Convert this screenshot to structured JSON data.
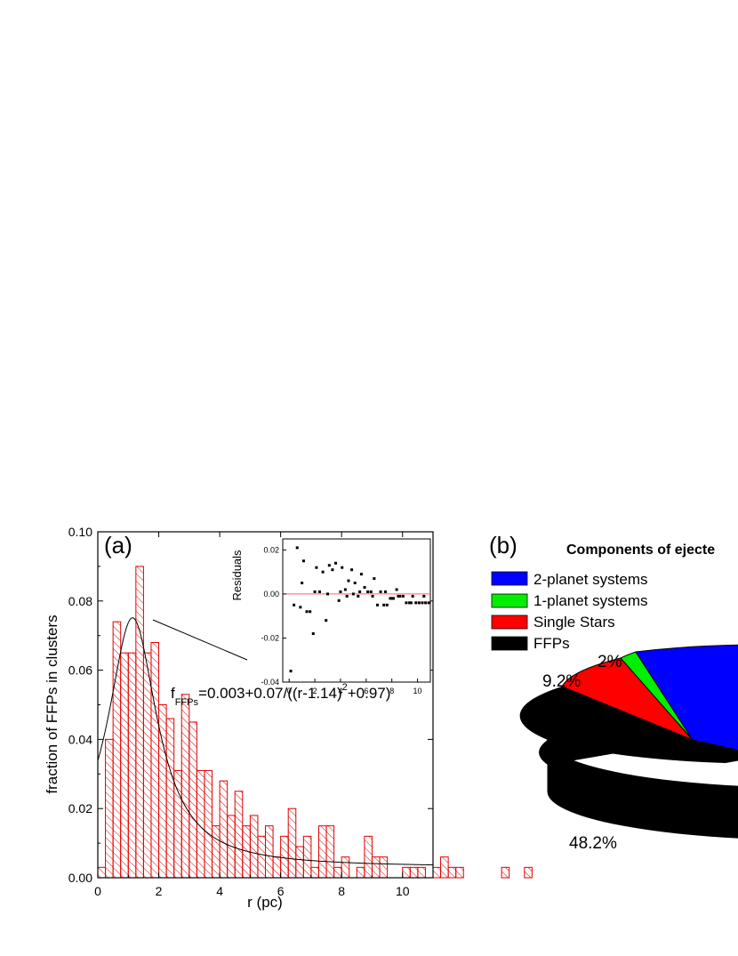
{
  "chart_data": [
    {
      "type": "bar",
      "panel_label": "(a)",
      "xlabel": "r (pc)",
      "ylabel": "fraction of FFPs in clusters",
      "xlim": [
        0,
        11
      ],
      "ylim": [
        0,
        0.1
      ],
      "x_ticks": [
        "0",
        "2",
        "4",
        "6",
        "8",
        "10"
      ],
      "y_ticks": [
        "0.00",
        "0.02",
        "0.04",
        "0.06",
        "0.08",
        "0.10"
      ],
      "bin_width": 0.25,
      "bin_start": 0,
      "values": [
        0.003,
        0.04,
        0.074,
        0.065,
        0.065,
        0.09,
        0.065,
        0.068,
        0.05,
        0.046,
        0.031,
        0.053,
        0.045,
        0.031,
        0.031,
        0.015,
        0.028,
        0.018,
        0.025,
        0.015,
        0.018,
        0.012,
        0.015,
        0.006,
        0.012,
        0.02,
        0.009,
        0.012,
        0.003,
        0.015,
        0.015,
        0.003,
        0.006,
        0,
        0.003,
        0.012,
        0.006,
        0.006,
        0,
        0,
        0.003,
        0.003,
        0.003,
        0,
        0.003,
        0.006,
        0.003,
        0.003,
        0,
        0,
        0,
        0,
        0,
        0.003,
        0,
        0,
        0.003,
        0
      ],
      "fit_equation": {
        "lead": "f",
        "sub": "FFPs",
        "mid": "=0.003+0.07/((r-1.14)",
        "sup": "2",
        "tail": "+0.97)"
      },
      "fit_params": {
        "a": 0.003,
        "b": 0.07,
        "c": 1.14,
        "d": 0.97
      },
      "bar_color": "#e00000"
    },
    {
      "type": "scatter",
      "role": "inset",
      "ylabel": "Residuals",
      "xlim": [
        -0.5,
        11
      ],
      "ylim": [
        -0.04,
        0.025
      ],
      "x_ticks": [
        "0",
        "2",
        "4",
        "6",
        "8",
        "10"
      ],
      "y_ticks": [
        "0.02",
        "0.00",
        "-0.02",
        "-0.04"
      ],
      "points": [
        [
          0.125,
          -0.035
        ],
        [
          0.375,
          -0.005
        ],
        [
          0.625,
          0.021
        ],
        [
          0.875,
          -0.006
        ],
        [
          1.125,
          0.015
        ],
        [
          1.375,
          -0.008
        ],
        [
          1.625,
          -0.008
        ],
        [
          1.875,
          -0.018
        ],
        [
          2.125,
          0.012
        ],
        [
          2.375,
          0.001
        ],
        [
          2.625,
          0.01
        ],
        [
          2.875,
          -0.012
        ],
        [
          3.125,
          0.013
        ],
        [
          3.375,
          0.011
        ],
        [
          3.625,
          0.014
        ],
        [
          3.875,
          -0.003
        ],
        [
          4.125,
          0.012
        ],
        [
          4.375,
          0.002
        ],
        [
          4.625,
          0.006
        ],
        [
          4.875,
          0.011
        ],
        [
          5.125,
          0.005
        ],
        [
          5.375,
          -0.001
        ],
        [
          5.625,
          0.009
        ],
        [
          5.875,
          0.003
        ],
        [
          6.125,
          0.001
        ],
        [
          6.375,
          0.001
        ],
        [
          6.625,
          0.007
        ],
        [
          6.875,
          -0.005
        ],
        [
          7.125,
          0.001
        ],
        [
          7.375,
          -0.005
        ],
        [
          7.625,
          -0.005
        ],
        [
          7.875,
          -0.002
        ],
        [
          8.125,
          -0.002
        ],
        [
          8.375,
          0.002
        ],
        [
          8.625,
          -0.001
        ],
        [
          8.875,
          -0.001
        ],
        [
          9.125,
          -0.004
        ],
        [
          9.375,
          -0.004
        ],
        [
          9.625,
          -0.001
        ],
        [
          9.875,
          -0.004
        ],
        [
          10.125,
          -0.004
        ],
        [
          10.375,
          -0.004
        ],
        [
          10.625,
          -0.004
        ],
        [
          10.875,
          -0.004
        ],
        [
          1.0,
          0.005
        ],
        [
          2.0,
          0.001
        ],
        [
          3.0,
          0.0
        ],
        [
          4.0,
          0.001
        ],
        [
          4.5,
          -0.001
        ],
        [
          5.0,
          0.0
        ],
        [
          5.5,
          0.001
        ],
        [
          6.5,
          -0.001
        ],
        [
          7.5,
          0.001
        ],
        [
          8.0,
          -0.002
        ],
        [
          8.5,
          -0.001
        ],
        [
          9.5,
          -0.004
        ],
        [
          10.5,
          -0.001
        ]
      ],
      "zero_line_color": "#ff6060"
    },
    {
      "type": "pie",
      "panel_label": "(b)",
      "title": "Components of ejecte",
      "legend": [
        {
          "label": "2-planet systems",
          "color": "#0000ff"
        },
        {
          "label": "1-planet systems",
          "color": "#00ee00"
        },
        {
          "label": "Single Stars",
          "color": "#ff0000"
        },
        {
          "label": "FFPs",
          "color": "#000000"
        }
      ],
      "slice_labels": [
        "9.2%",
        "2%",
        "48.2%"
      ]
    }
  ]
}
